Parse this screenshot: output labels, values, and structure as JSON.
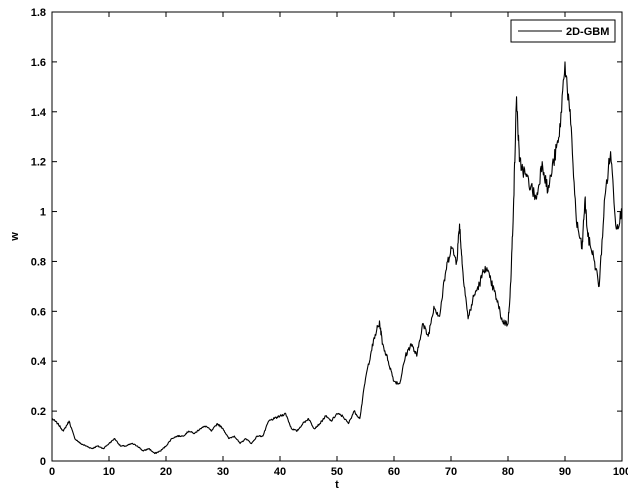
{
  "chart_data": {
    "type": "line",
    "title": "",
    "xlabel": "t",
    "ylabel": "w",
    "xlim": [
      0,
      100
    ],
    "ylim": [
      0,
      1.8
    ],
    "xticks": [
      "0",
      "10",
      "20",
      "30",
      "40",
      "50",
      "60",
      "70",
      "80",
      "90",
      "100"
    ],
    "yticks": [
      "0",
      "0.2",
      "0.4",
      "0.6",
      "0.8",
      "1",
      "1.2",
      "1.4",
      "1.6",
      "1.8"
    ],
    "grid": false,
    "legend": {
      "position": "top-right",
      "entries": [
        "2D-GBM"
      ]
    },
    "series": [
      {
        "name": "2D-GBM",
        "color": "#000000",
        "x": [
          0,
          1,
          2,
          3,
          4,
          5,
          6,
          7,
          8,
          9,
          10,
          11,
          12,
          13,
          14,
          15,
          16,
          17,
          18,
          19,
          20,
          21,
          22,
          23,
          24,
          25,
          26,
          27,
          28,
          29,
          30,
          31,
          32,
          33,
          34,
          35,
          36,
          37,
          38,
          39,
          40,
          41,
          42,
          43,
          44,
          45,
          46,
          47,
          48,
          49,
          50,
          51,
          52,
          53,
          54,
          55,
          56,
          57,
          57.5,
          58,
          59,
          60,
          61,
          62,
          63,
          64,
          65,
          66,
          67,
          68,
          69,
          70,
          71,
          71.5,
          72,
          73,
          74,
          75,
          76,
          77,
          78,
          79,
          80,
          80.5,
          81,
          81.5,
          82,
          83,
          84,
          85,
          86,
          87,
          88,
          89,
          90,
          91,
          92,
          93,
          93.5,
          94,
          95,
          96,
          97,
          98,
          99,
          100
        ],
        "values": [
          0.17,
          0.15,
          0.12,
          0.16,
          0.09,
          0.07,
          0.06,
          0.05,
          0.06,
          0.05,
          0.07,
          0.09,
          0.06,
          0.06,
          0.07,
          0.06,
          0.04,
          0.05,
          0.03,
          0.04,
          0.06,
          0.09,
          0.1,
          0.1,
          0.12,
          0.11,
          0.13,
          0.14,
          0.12,
          0.15,
          0.13,
          0.09,
          0.1,
          0.07,
          0.09,
          0.07,
          0.1,
          0.1,
          0.16,
          0.17,
          0.18,
          0.19,
          0.13,
          0.12,
          0.15,
          0.17,
          0.13,
          0.15,
          0.18,
          0.16,
          0.19,
          0.18,
          0.15,
          0.2,
          0.17,
          0.33,
          0.44,
          0.53,
          0.55,
          0.47,
          0.4,
          0.32,
          0.31,
          0.42,
          0.47,
          0.42,
          0.55,
          0.5,
          0.62,
          0.58,
          0.75,
          0.86,
          0.8,
          0.95,
          0.78,
          0.57,
          0.66,
          0.71,
          0.78,
          0.72,
          0.65,
          0.56,
          0.55,
          0.72,
          1.05,
          1.46,
          1.2,
          1.15,
          1.1,
          1.05,
          1.2,
          1.08,
          1.2,
          1.3,
          1.6,
          1.35,
          0.96,
          0.85,
          1.05,
          0.9,
          0.82,
          0.7,
          1.06,
          1.24,
          0.93,
          1.0
        ]
      }
    ]
  }
}
